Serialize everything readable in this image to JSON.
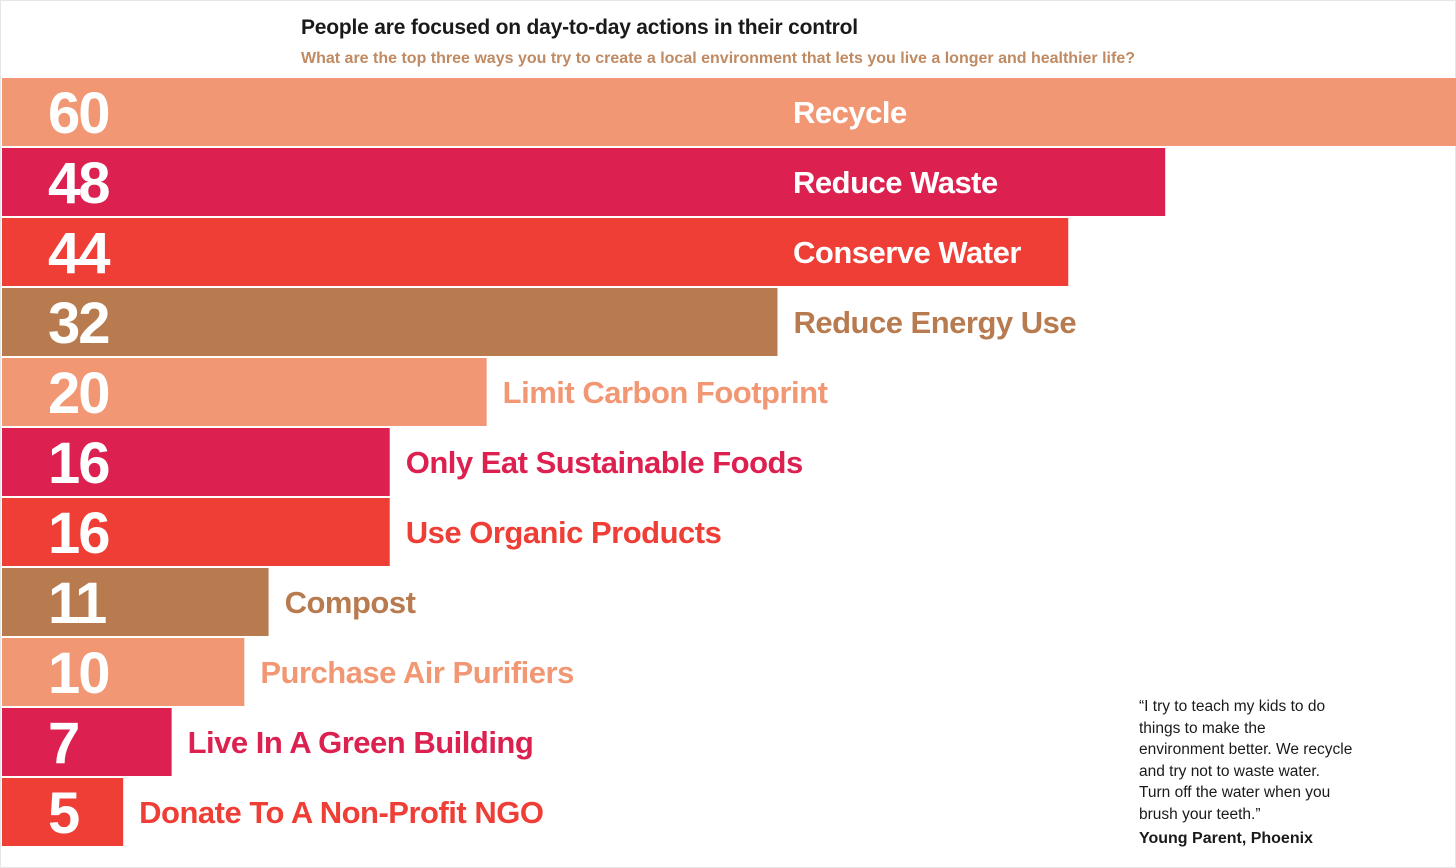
{
  "chart_data": {
    "type": "bar",
    "orientation": "horizontal",
    "title": "People are focused on day-to-day actions in their control",
    "subtitle": "What are the top three ways you try to create a local environment that lets you live a longer and healthier life?",
    "categories": [
      "Recycle",
      "Reduce Waste",
      "Conserve Water",
      "Reduce Energy Use",
      "Limit Carbon Footprint",
      "Only Eat Sustainable Foods",
      "Use Organic Products",
      "Compost",
      "Purchase Air Purifiers",
      "Live In A Green Building",
      "Donate To A Non-Profit NGO"
    ],
    "values": [
      60,
      48,
      44,
      32,
      20,
      16,
      16,
      11,
      10,
      7,
      5
    ],
    "colors": [
      "#f29773",
      "#dc2150",
      "#ef3e36",
      "#b87b50",
      "#f29773",
      "#dc2150",
      "#ef3e36",
      "#b87b50",
      "#f29773",
      "#dc2150",
      "#ef3e36"
    ],
    "xlim": [
      0,
      60
    ],
    "grid": false,
    "legend": "none"
  },
  "quote": {
    "text": "“I try to teach my kids to do things to make the environment better. We recycle and try not to waste water. Turn off the water when you brush your teeth.”",
    "author": "Young Parent, Phoenix"
  }
}
